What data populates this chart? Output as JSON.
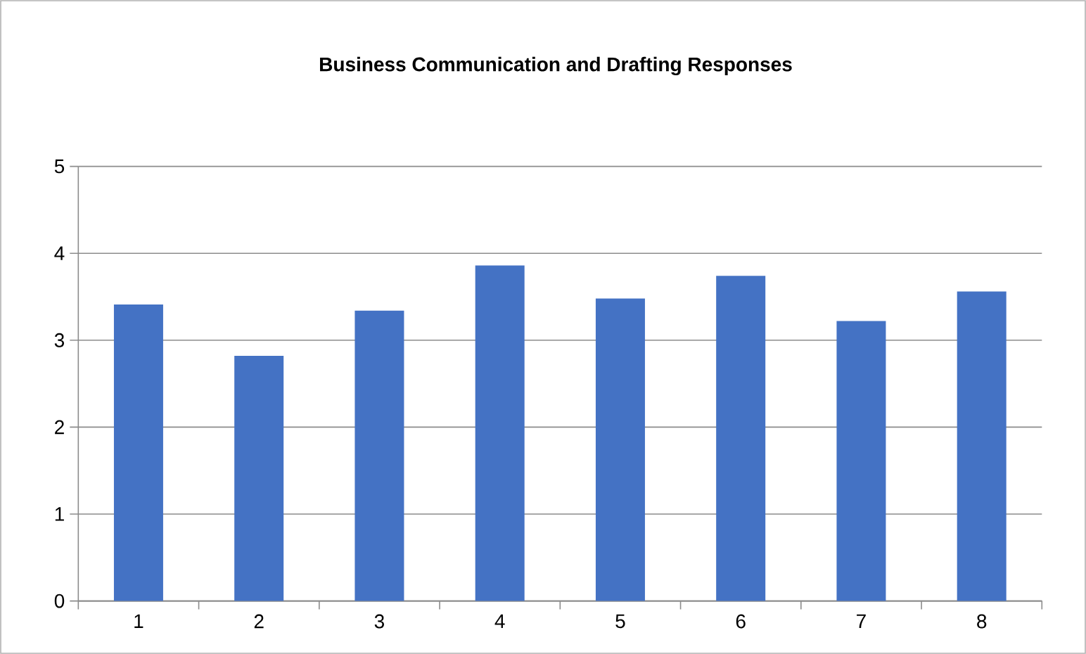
{
  "chart_data": {
    "type": "bar",
    "title": "Business Communication and Drafting Responses",
    "categories": [
      "1",
      "2",
      "3",
      "4",
      "5",
      "6",
      "7",
      "8"
    ],
    "values": [
      3.41,
      2.82,
      3.34,
      3.86,
      3.48,
      3.74,
      3.22,
      3.56
    ],
    "color": "#4472c4",
    "ylim": [
      0,
      5
    ],
    "yticks": [
      0,
      1,
      2,
      3,
      4,
      5
    ],
    "grid": "y"
  }
}
